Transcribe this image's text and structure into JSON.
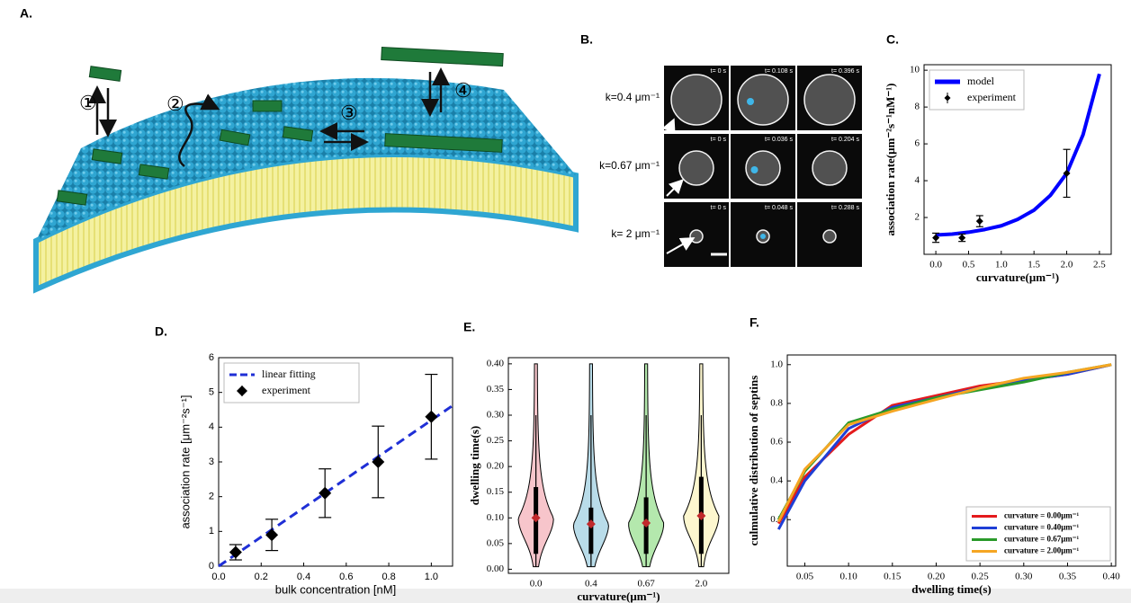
{
  "panel_a": {
    "label": "A.",
    "steps": [
      "①",
      "②",
      "③",
      "④"
    ]
  },
  "panel_b": {
    "label": "B.",
    "rows": [
      {
        "label": "k=0.4 μm⁻¹",
        "times": [
          "t= 0 s",
          "t= 0.108 s",
          "t= 0.396 s"
        ]
      },
      {
        "label": "k=0.67 μm⁻¹",
        "times": [
          "t= 0 s",
          "t= 0.036 s",
          "t= 0.204 s"
        ]
      },
      {
        "label": "k= 2 μm⁻¹",
        "times": [
          "t= 0 s",
          "t= 0.048 s",
          "t= 0.288 s"
        ]
      }
    ]
  },
  "chart_data": [
    {
      "type": "line",
      "label": "C.",
      "xlabel": "curvature(μm⁻¹)",
      "ylabel": "association rate(μm⁻²s⁻¹nM⁻¹)",
      "xlim": [
        -0.18,
        2.68
      ],
      "ylim": [
        0,
        10.3
      ],
      "xticks": [
        {
          "value": 0,
          "label": "0.0"
        },
        0.5,
        {
          "value": 1,
          "label": "1.0"
        },
        1.5,
        {
          "value": 2,
          "label": "2.0"
        },
        2.5
      ],
      "yticks": [
        2,
        4,
        6,
        8,
        10
      ],
      "legend": "upper left",
      "series": [
        {
          "name": "model",
          "kind": "line",
          "color": "#0000ff",
          "x": [
            0,
            0.25,
            0.5,
            0.75,
            1,
            1.25,
            1.5,
            1.75,
            2,
            2.25,
            2.5
          ],
          "values": [
            1.05,
            1.1,
            1.2,
            1.35,
            1.55,
            1.9,
            2.4,
            3.2,
            4.4,
            6.5,
            9.8
          ]
        },
        {
          "name": "experiment",
          "kind": "errorbar",
          "color": "#000000",
          "x": [
            0,
            0.4,
            0.67,
            2
          ],
          "values": [
            0.9,
            0.9,
            1.8,
            4.4
          ],
          "errors": [
            0.25,
            0.2,
            0.3,
            1.3
          ]
        }
      ]
    },
    {
      "type": "line",
      "label": "D.",
      "xlabel": "bulk concentration [nM]",
      "ylabel": "association rate [μm⁻²s⁻¹]",
      "xlim": [
        0,
        1.1
      ],
      "ylim": [
        0,
        6
      ],
      "xticks": [
        {
          "value": 0,
          "label": "0.0"
        },
        0.2,
        0.4,
        0.6,
        0.8,
        {
          "value": 1,
          "label": "1.0"
        }
      ],
      "yticks": [
        0,
        1,
        2,
        3,
        4,
        5,
        6
      ],
      "legend": "upper left",
      "series": [
        {
          "name": "linear fitting",
          "kind": "dashed",
          "color": "#1f2fd6",
          "x": [
            0,
            1.1
          ],
          "values": [
            0,
            4.62
          ]
        },
        {
          "name": "experiment",
          "kind": "errorbar",
          "color": "#000000",
          "x": [
            0.08,
            0.25,
            0.5,
            0.75,
            1
          ],
          "values": [
            0.4,
            0.9,
            2.1,
            3.0,
            4.3
          ],
          "errors": [
            0.22,
            0.45,
            0.7,
            1.03,
            1.22
          ]
        }
      ]
    },
    {
      "type": "violin",
      "label": "E.",
      "xlabel": "curvature(μm⁻¹)",
      "ylabel": "dwelling time(s)",
      "categories": [
        "0.0",
        "0.4",
        "0.67",
        "2.0"
      ],
      "colors": [
        "#f7c5cb",
        "#b9dce9",
        "#b4e8ad",
        "#fdf7cf"
      ],
      "median_color": "#c0282b",
      "medians": [
        0.1,
        0.088,
        0.09,
        0.104
      ],
      "min": [
        0.005,
        0.005,
        0.005,
        0.005
      ],
      "max": [
        0.4,
        0.4,
        0.4,
        0.4
      ],
      "q1": [
        0.03,
        0.03,
        0.03,
        0.03
      ],
      "q3": [
        0.16,
        0.12,
        0.14,
        0.18
      ],
      "ylim": [
        -0.008,
        0.412
      ],
      "yticks": [
        {
          "value": 0,
          "label": "0.00"
        },
        0.05,
        {
          "value": 0.1,
          "label": "0.10"
        },
        0.15,
        {
          "value": 0.2,
          "label": "0.20"
        },
        0.25,
        {
          "value": 0.3,
          "label": "0.30"
        },
        0.35,
        {
          "value": 0.4,
          "label": "0.40"
        }
      ]
    },
    {
      "type": "line",
      "label": "F.",
      "xlabel": "dwelling time(s)",
      "ylabel": "culmulative distribution of septins",
      "xlim": [
        0.03,
        0.405
      ],
      "ylim": [
        -0.04,
        1.05
      ],
      "xticks": [
        0.05,
        {
          "value": 0.1,
          "label": "0.10"
        },
        0.15,
        {
          "value": 0.2,
          "label": "0.20"
        },
        0.25,
        {
          "value": 0.3,
          "label": "0.30"
        },
        0.35,
        {
          "value": 0.4,
          "label": "0.40"
        }
      ],
      "yticks": [
        0.2,
        0.4,
        0.6,
        0.8,
        {
          "value": 1,
          "label": "1.0"
        }
      ],
      "legend": "lower right",
      "x": [
        0.02,
        0.05,
        0.1,
        0.15,
        0.2,
        0.25,
        0.3,
        0.35,
        0.4
      ],
      "series": [
        {
          "name": "curvature = 0.00μm⁻¹",
          "kind": "line",
          "color": "#e41a1c",
          "values": [
            0.18,
            0.42,
            0.64,
            0.79,
            0.84,
            0.89,
            0.92,
            0.95,
            1.0
          ]
        },
        {
          "name": "curvature = 0.40μm⁻¹",
          "kind": "line",
          "color": "#1f3fd6",
          "values": [
            0.15,
            0.4,
            0.67,
            0.78,
            0.83,
            0.88,
            0.92,
            0.95,
            1.0
          ]
        },
        {
          "name": "curvature = 0.67μm⁻¹",
          "kind": "line",
          "color": "#2a9a2a",
          "values": [
            0.2,
            0.45,
            0.7,
            0.77,
            0.83,
            0.87,
            0.91,
            0.96,
            1.0
          ]
        },
        {
          "name": "curvature = 2.00μm⁻¹",
          "kind": "line",
          "color": "#f5a623",
          "values": [
            0.19,
            0.46,
            0.69,
            0.76,
            0.82,
            0.88,
            0.93,
            0.96,
            1.0
          ]
        }
      ]
    }
  ]
}
